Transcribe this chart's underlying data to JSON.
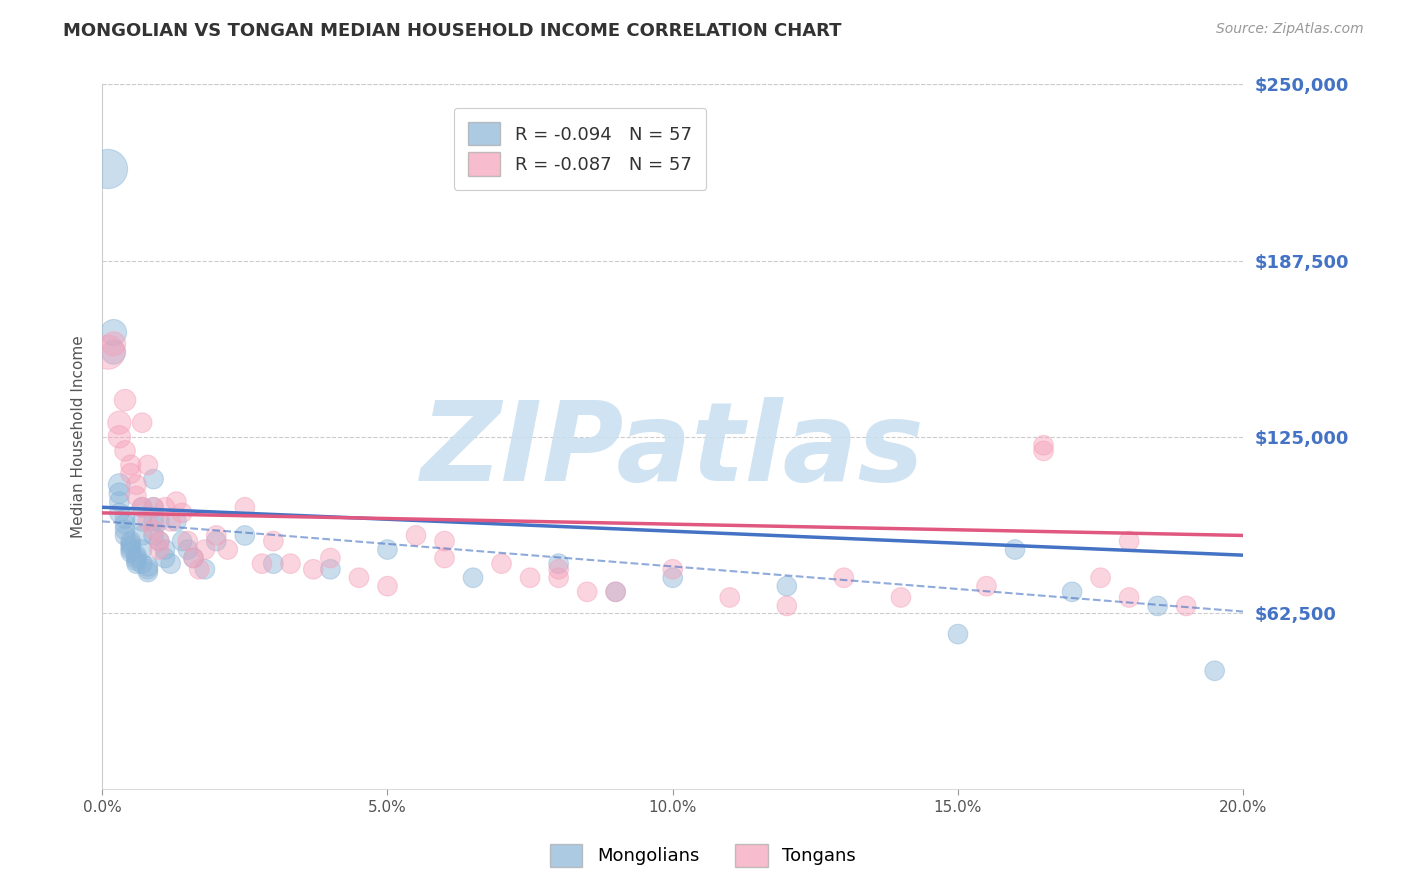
{
  "title": "MONGOLIAN VS TONGAN MEDIAN HOUSEHOLD INCOME CORRELATION CHART",
  "source": "Source: ZipAtlas.com",
  "ylabel": "Median Household Income",
  "xlim": [
    0.0,
    0.2
  ],
  "ylim": [
    0,
    250000
  ],
  "yticks": [
    0,
    62500,
    125000,
    187500,
    250000
  ],
  "ytick_labels": [
    "",
    "$62,500",
    "$125,000",
    "$187,500",
    "$250,000"
  ],
  "xticks": [
    0.0,
    0.05,
    0.1,
    0.15,
    0.2
  ],
  "xtick_labels": [
    "0.0%",
    "5.0%",
    "10.0%",
    "15.0%",
    "20.0%"
  ],
  "legend_R_mongolian": "R = -0.094",
  "legend_N_mongolian": "N = 57",
  "legend_R_tongan": "R = -0.087",
  "legend_N_tongan": "N = 57",
  "mongolian_color": "#8ab4d8",
  "tongan_color": "#f4a0b8",
  "trendline_mongolian_color": "#4472c4",
  "trendline_tongan_color": "#e05880",
  "watermark_text": "ZIPatlas",
  "watermark_color": "#c8dff0",
  "grid_color": "#cccccc",
  "ytick_color": "#4472c4",
  "bg_color": "#ffffff",
  "mongolian_x": [
    0.001,
    0.002,
    0.002,
    0.003,
    0.003,
    0.003,
    0.003,
    0.004,
    0.004,
    0.004,
    0.004,
    0.005,
    0.005,
    0.005,
    0.005,
    0.005,
    0.006,
    0.006,
    0.006,
    0.006,
    0.007,
    0.007,
    0.007,
    0.007,
    0.007,
    0.008,
    0.008,
    0.008,
    0.009,
    0.009,
    0.009,
    0.009,
    0.01,
    0.01,
    0.011,
    0.011,
    0.012,
    0.013,
    0.014,
    0.015,
    0.016,
    0.018,
    0.02,
    0.025,
    0.03,
    0.04,
    0.05,
    0.065,
    0.08,
    0.09,
    0.1,
    0.12,
    0.15,
    0.16,
    0.17,
    0.185,
    0.195
  ],
  "mongolian_y": [
    220000,
    162000,
    155000,
    108000,
    105000,
    102000,
    98000,
    96000,
    94000,
    92000,
    90000,
    88000,
    87000,
    86000,
    85000,
    84000,
    83000,
    82000,
    81000,
    80000,
    100000,
    95000,
    90000,
    85000,
    80000,
    79000,
    78000,
    77000,
    110000,
    100000,
    95000,
    90000,
    95000,
    88000,
    85000,
    82000,
    80000,
    95000,
    88000,
    85000,
    82000,
    78000,
    88000,
    90000,
    80000,
    78000,
    85000,
    75000,
    80000,
    70000,
    75000,
    72000,
    55000,
    85000,
    70000,
    65000,
    42000
  ],
  "mongolian_sizes": [
    800,
    350,
    300,
    250,
    220,
    200,
    200,
    200,
    200,
    200,
    200,
    200,
    200,
    200,
    200,
    200,
    200,
    200,
    200,
    200,
    200,
    200,
    200,
    200,
    200,
    200,
    200,
    200,
    200,
    200,
    200,
    200,
    200,
    200,
    200,
    200,
    200,
    200,
    200,
    200,
    200,
    200,
    200,
    200,
    200,
    200,
    200,
    200,
    200,
    200,
    200,
    200,
    200,
    200,
    200,
    200,
    200
  ],
  "tongan_x": [
    0.001,
    0.002,
    0.003,
    0.003,
    0.004,
    0.004,
    0.005,
    0.005,
    0.006,
    0.006,
    0.007,
    0.007,
    0.008,
    0.008,
    0.009,
    0.009,
    0.01,
    0.01,
    0.011,
    0.012,
    0.013,
    0.014,
    0.015,
    0.016,
    0.017,
    0.018,
    0.02,
    0.022,
    0.025,
    0.028,
    0.03,
    0.033,
    0.037,
    0.04,
    0.045,
    0.05,
    0.06,
    0.07,
    0.08,
    0.09,
    0.1,
    0.11,
    0.12,
    0.13,
    0.14,
    0.155,
    0.165,
    0.165,
    0.175,
    0.18,
    0.06,
    0.08,
    0.055,
    0.075,
    0.085,
    0.18,
    0.19
  ],
  "tongan_y": [
    155000,
    158000,
    130000,
    125000,
    138000,
    120000,
    115000,
    112000,
    108000,
    104000,
    130000,
    100000,
    115000,
    95000,
    100000,
    92000,
    88000,
    85000,
    100000,
    95000,
    102000,
    98000,
    88000,
    82000,
    78000,
    85000,
    90000,
    85000,
    100000,
    80000,
    88000,
    80000,
    78000,
    82000,
    75000,
    72000,
    88000,
    80000,
    75000,
    70000,
    78000,
    68000,
    65000,
    75000,
    68000,
    72000,
    120000,
    122000,
    75000,
    68000,
    82000,
    78000,
    90000,
    75000,
    70000,
    88000,
    65000
  ],
  "tongan_sizes": [
    600,
    300,
    280,
    260,
    240,
    220,
    210,
    210,
    200,
    200,
    200,
    200,
    200,
    200,
    200,
    200,
    200,
    200,
    200,
    200,
    200,
    200,
    200,
    200,
    200,
    200,
    200,
    200,
    200,
    200,
    200,
    200,
    200,
    200,
    200,
    200,
    200,
    200,
    200,
    200,
    200,
    200,
    200,
    200,
    200,
    200,
    200,
    200,
    200,
    200,
    200,
    200,
    200,
    200,
    200,
    200,
    200
  ]
}
